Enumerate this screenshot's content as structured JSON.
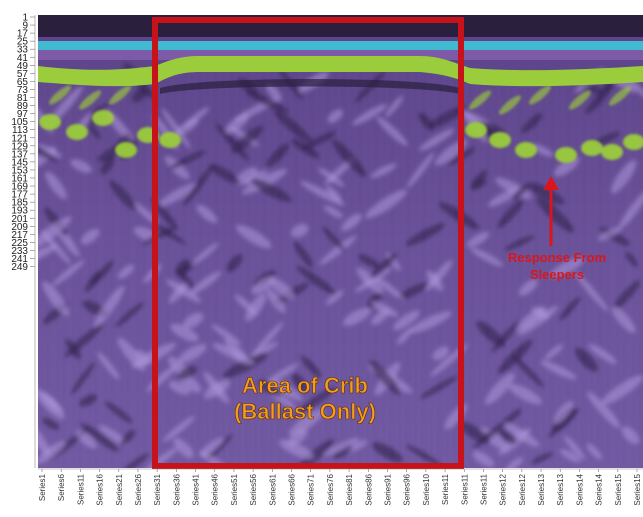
{
  "chart_data": {
    "type": "heatmap",
    "title": "",
    "xlabel": "",
    "ylabel": "",
    "y_ticks": [
      "1",
      "9",
      "17",
      "25",
      "33",
      "41",
      "49",
      "57",
      "65",
      "73",
      "81",
      "89",
      "97",
      "105",
      "113",
      "121",
      "129",
      "137",
      "145",
      "153",
      "161",
      "169",
      "177",
      "185",
      "193",
      "201",
      "209",
      "217",
      "225",
      "233",
      "241",
      "249"
    ],
    "x_ticks": [
      "Series1",
      "Series6",
      "Series11",
      "Series16",
      "Series21",
      "Series26",
      "Series31",
      "Series36",
      "Series41",
      "Series46",
      "Series51",
      "Series56",
      "Series61",
      "Series66",
      "Series71",
      "Series76",
      "Series81",
      "Series86",
      "Series91",
      "Series96",
      "Series10",
      "Series11",
      "Series11",
      "Series11",
      "Series12",
      "Series12",
      "Series13",
      "Series13",
      "Series14",
      "Series14",
      "Series15",
      "Series15"
    ],
    "annotations": {
      "crib_line1": "Area of Crib",
      "crib_line2": "(Ballast Only)",
      "response_line1": "Response From",
      "response_line2": "Sleepers"
    },
    "colors": {
      "background_purple": "#6a4f96",
      "dark_band": "#2a1f3d",
      "cyan_band": "#3ec6d8",
      "green_band": "#9bcc3c",
      "crib_box": "#c8121a",
      "arrow": "#d8161b",
      "crib_text": "#f39c1f"
    }
  }
}
